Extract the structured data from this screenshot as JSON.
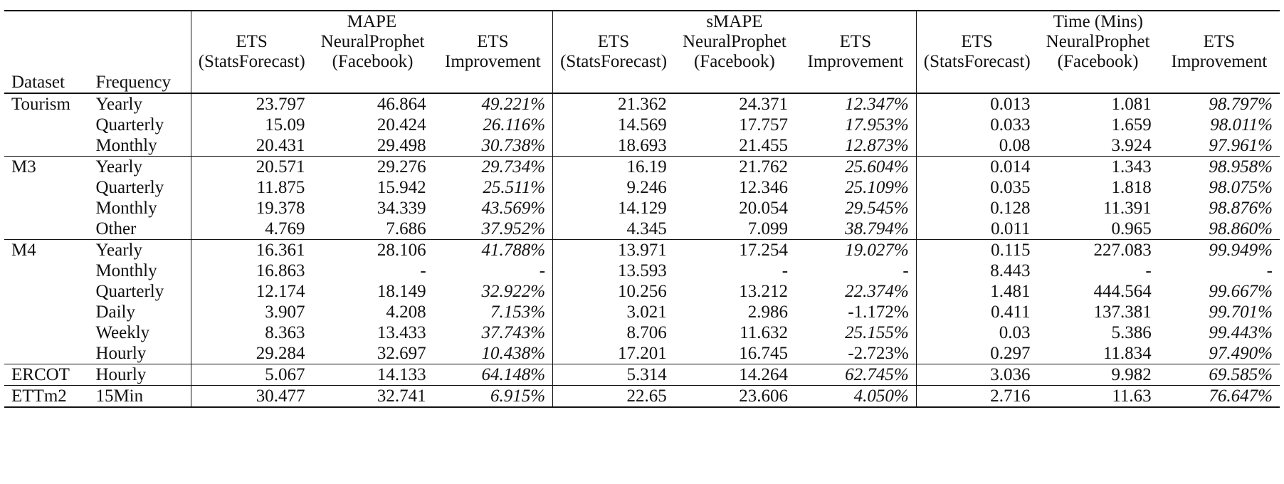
{
  "header": {
    "groups": [
      "MAPE",
      "sMAPE",
      "Time (Mins)"
    ],
    "models": [
      {
        "line1": "ETS",
        "line2": "(StatsForecast)"
      },
      {
        "line1": "NeuralProphet",
        "line2": "(Facebook)"
      },
      {
        "line1": "ETS",
        "line2": "Improvement"
      }
    ],
    "dataset_label": "Dataset",
    "frequency_label": "Frequency"
  },
  "blocks": [
    {
      "dataset": "Tourism",
      "rows": [
        {
          "freq": "Yearly",
          "values": [
            "23.797",
            "46.864",
            "49.221%",
            "21.362",
            "24.371",
            "12.347%",
            "0.013",
            "1.081",
            "98.797%"
          ]
        },
        {
          "freq": "Quarterly",
          "values": [
            "15.09",
            "20.424",
            "26.116%",
            "14.569",
            "17.757",
            "17.953%",
            "0.033",
            "1.659",
            "98.011%"
          ]
        },
        {
          "freq": "Monthly",
          "values": [
            "20.431",
            "29.498",
            "30.738%",
            "18.693",
            "21.455",
            "12.873%",
            "0.08",
            "3.924",
            "97.961%"
          ]
        }
      ]
    },
    {
      "dataset": "M3",
      "rows": [
        {
          "freq": "Yearly",
          "values": [
            "20.571",
            "29.276",
            "29.734%",
            "16.19",
            "21.762",
            "25.604%",
            "0.014",
            "1.343",
            "98.958%"
          ]
        },
        {
          "freq": "Quarterly",
          "values": [
            "11.875",
            "15.942",
            "25.511%",
            "9.246",
            "12.346",
            "25.109%",
            "0.035",
            "1.818",
            "98.075%"
          ]
        },
        {
          "freq": "Monthly",
          "values": [
            "19.378",
            "34.339",
            "43.569%",
            "14.129",
            "20.054",
            "29.545%",
            "0.128",
            "11.391",
            "98.876%"
          ]
        },
        {
          "freq": "Other",
          "values": [
            "4.769",
            "7.686",
            "37.952%",
            "4.345",
            "7.099",
            "38.794%",
            "0.011",
            "0.965",
            "98.860%"
          ]
        }
      ]
    },
    {
      "dataset": "M4",
      "rows": [
        {
          "freq": "Yearly",
          "values": [
            "16.361",
            "28.106",
            "41.788%",
            "13.971",
            "17.254",
            "19.027%",
            "0.115",
            "227.083",
            "99.949%"
          ]
        },
        {
          "freq": "Monthly",
          "values": [
            "16.863",
            "-",
            "-",
            "13.593",
            "-",
            "-",
            "8.443",
            "-",
            "-"
          ]
        },
        {
          "freq": "Quarterly",
          "values": [
            "12.174",
            "18.149",
            "32.922%",
            "10.256",
            "13.212",
            "22.374%",
            "1.481",
            "444.564",
            "99.667%"
          ]
        },
        {
          "freq": "Daily",
          "values": [
            "3.907",
            "4.208",
            "7.153%",
            "3.021",
            "2.986",
            "-1.172%",
            "0.411",
            "137.381",
            "99.701%"
          ]
        },
        {
          "freq": "Weekly",
          "values": [
            "8.363",
            "13.433",
            "37.743%",
            "8.706",
            "11.632",
            "25.155%",
            "0.03",
            "5.386",
            "99.443%"
          ]
        },
        {
          "freq": "Hourly",
          "values": [
            "29.284",
            "32.697",
            "10.438%",
            "17.201",
            "16.745",
            "-2.723%",
            "0.297",
            "11.834",
            "97.490%"
          ]
        }
      ]
    },
    {
      "dataset": "ERCOT",
      "rows": [
        {
          "freq": "Hourly",
          "values": [
            "5.067",
            "14.133",
            "64.148%",
            "5.314",
            "14.264",
            "62.745%",
            "3.036",
            "9.982",
            "69.585%"
          ]
        }
      ]
    },
    {
      "dataset": "ETTm2",
      "rows": [
        {
          "freq": "15Min",
          "values": [
            "30.477",
            "32.741",
            "6.915%",
            "22.65",
            "23.606",
            "4.050%",
            "2.716",
            "11.63",
            "76.647%"
          ]
        }
      ]
    }
  ]
}
